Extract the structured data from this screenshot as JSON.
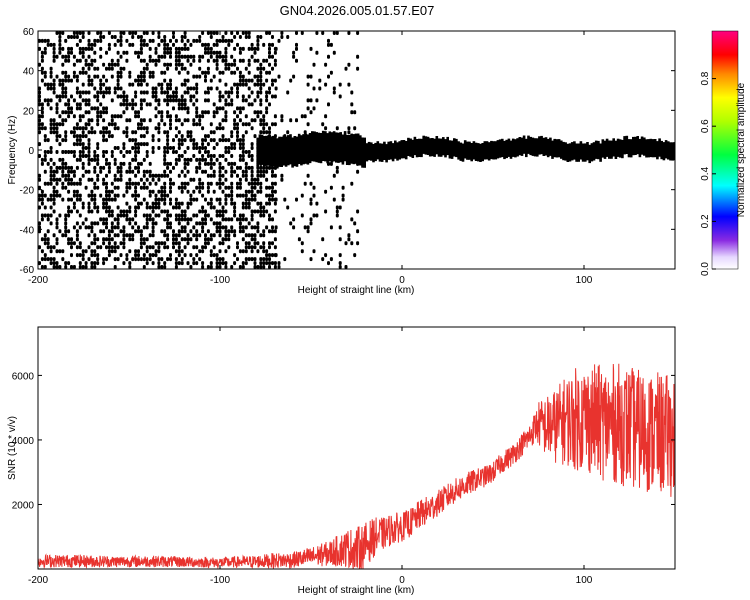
{
  "page": {
    "title": "GN04.2026.005.01.57.E07"
  },
  "chart_data": [
    {
      "type": "heatmap",
      "xlabel": "Height of straight line (km)",
      "ylabel": "Frequency (Hz)",
      "xlim": [
        -200,
        150
      ],
      "ylim": [
        -60,
        60
      ],
      "xticks": [
        -200,
        -100,
        0,
        100
      ],
      "yticks": [
        -60,
        -40,
        -20,
        0,
        20,
        40,
        60
      ],
      "grid": false,
      "colorbar": {
        "label": "Normalized spectral amplitude",
        "range": [
          0,
          1
        ],
        "ticks": [
          "0.0",
          "0.2",
          "0.4",
          "0.6",
          "0.8"
        ]
      },
      "regions": [
        {
          "x_from": -200,
          "x_to": -70,
          "pattern": "scattered noise across all frequencies",
          "amplitude": 0.05
        },
        {
          "x_from": -70,
          "x_to": -25,
          "pattern": "fading noise",
          "amplitude": 0.02
        },
        {
          "x_from": -80,
          "x_to": -20,
          "pattern": "band centered at 0 Hz, half-width 7 Hz",
          "amplitude": 0.45
        },
        {
          "x_from": -20,
          "x_to": 150,
          "pattern": "narrow band at 0 Hz, half-width 4 Hz",
          "amplitude": 0.9
        }
      ]
    },
    {
      "type": "line",
      "xlabel": "Height of straight line (km)",
      "ylabel": "SNR (10 * v/v)",
      "xlim": [
        -200,
        150
      ],
      "ylim": [
        0,
        7500
      ],
      "xticks": [
        -200,
        -100,
        0,
        100
      ],
      "yticks": [
        2000,
        4000,
        6000
      ],
      "grid": false,
      "color": "#e8332e",
      "x": [
        -200,
        -180,
        -160,
        -140,
        -120,
        -100,
        -80,
        -70,
        -60,
        -50,
        -40,
        -30,
        -25,
        -20,
        -15,
        -10,
        -5,
        0,
        5,
        10,
        15,
        20,
        25,
        30,
        35,
        40,
        45,
        50,
        55,
        60,
        65,
        70,
        73,
        75,
        80,
        85,
        90,
        95,
        100,
        110,
        120,
        130,
        140,
        150
      ],
      "y": [
        250,
        250,
        230,
        240,
        220,
        200,
        230,
        260,
        280,
        380,
        480,
        650,
        600,
        750,
        1000,
        1100,
        1250,
        1300,
        1450,
        1700,
        1850,
        2050,
        2250,
        2450,
        2600,
        2750,
        2850,
        3000,
        3300,
        3500,
        3800,
        4100,
        4400,
        4500,
        4400,
        4450,
        4600,
        4650,
        4700,
        4550,
        4500,
        4300,
        4200,
        4100
      ],
      "spread": [
        200,
        200,
        180,
        180,
        170,
        160,
        200,
        240,
        250,
        300,
        400,
        600,
        700,
        700,
        600,
        500,
        500,
        450,
        450,
        450,
        450,
        400,
        400,
        380,
        380,
        350,
        330,
        320,
        330,
        340,
        350,
        400,
        500,
        700,
        1000,
        1200,
        1400,
        1600,
        1700,
        1800,
        1900,
        1900,
        1900,
        1900
      ]
    }
  ]
}
